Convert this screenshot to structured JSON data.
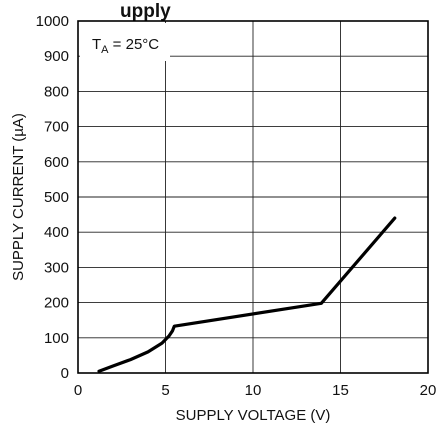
{
  "chart_data": {
    "type": "line",
    "title_fragment": "upply",
    "xlabel": "SUPPLY VOLTAGE (V)",
    "ylabel": "SUPPLY CURRENT (µA)",
    "xlim": [
      0,
      20
    ],
    "ylim": [
      0,
      1000
    ],
    "xticks": [
      0,
      5,
      10,
      15,
      20
    ],
    "yticks": [
      0,
      100,
      200,
      300,
      400,
      500,
      600,
      700,
      800,
      900,
      1000
    ],
    "grid": true,
    "annotation": {
      "prefix": "T",
      "subscript": "A",
      "suffix": " = 25°C"
    },
    "series": [
      {
        "x": [
          1.2,
          2.0,
          3.0,
          4.0,
          4.8,
          5.2,
          5.4,
          5.5,
          13.9,
          18.1
        ],
        "y": [
          5,
          20,
          38,
          60,
          85,
          105,
          120,
          133,
          198,
          440
        ]
      }
    ],
    "colors": {
      "line": "#000000",
      "grid": "#222222",
      "frame": "#000000",
      "background": "#ffffff"
    }
  }
}
